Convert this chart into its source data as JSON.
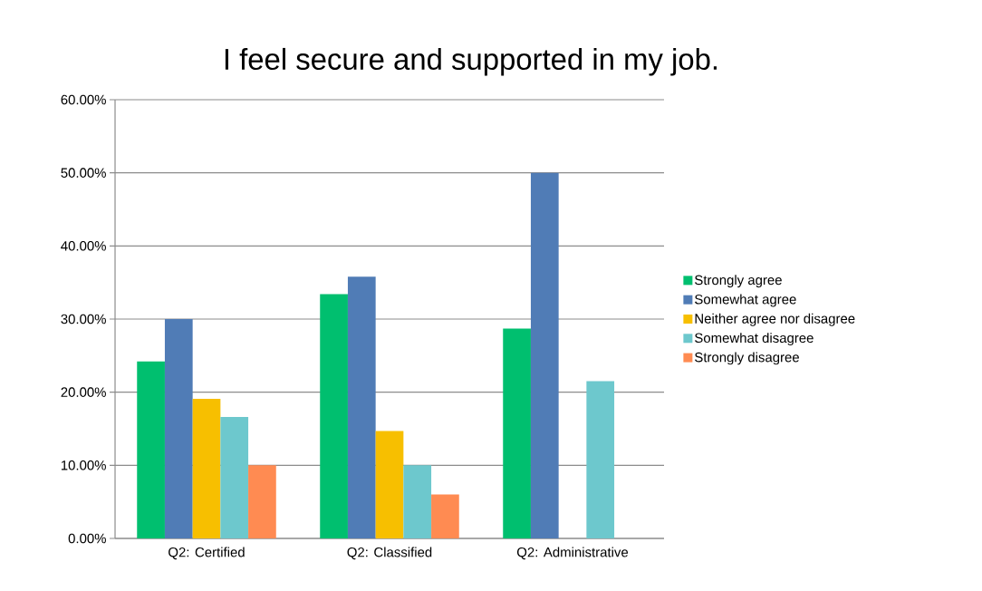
{
  "chart_data": {
    "type": "bar",
    "title": "I feel secure and supported in my job.",
    "categories": [
      "Q2: Certified",
      "Q2: Classified",
      "Q2: Administrative"
    ],
    "series": [
      {
        "name": "Strongly agree",
        "color": "#00bf6f",
        "values": [
          24.2,
          33.4,
          28.7
        ]
      },
      {
        "name": "Somewhat agree",
        "color": "#507cb6",
        "values": [
          30.0,
          35.8,
          50.0
        ]
      },
      {
        "name": "Neither agree nor disagree",
        "color": "#f7bf00",
        "values": [
          19.1,
          14.7,
          0
        ]
      },
      {
        "name": "Somewhat disagree",
        "color": "#6dc8cd",
        "values": [
          16.6,
          10.0,
          21.5
        ]
      },
      {
        "name": "Strongly disagree",
        "color": "#ff8b52",
        "values": [
          10.0,
          6.0,
          0
        ]
      }
    ],
    "ylim": [
      0,
      60
    ],
    "yticks": [
      {
        "value": 0,
        "label": "0.00%"
      },
      {
        "value": 10,
        "label": "10.00%"
      },
      {
        "value": 20,
        "label": "20.00%"
      },
      {
        "value": 30,
        "label": "30.00%"
      },
      {
        "value": 40,
        "label": "40.00%"
      },
      {
        "value": 50,
        "label": "50.00%"
      },
      {
        "value": 60,
        "label": "60.00%"
      }
    ],
    "grid": "y",
    "legend": "right"
  }
}
